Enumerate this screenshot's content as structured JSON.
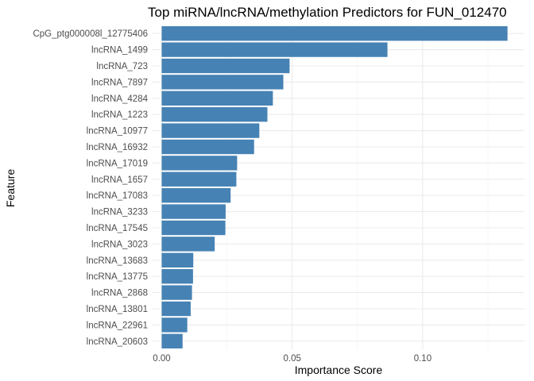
{
  "chart_data": {
    "type": "bar",
    "orientation": "horizontal",
    "title": "Top miRNA/lncRNA/methylation Predictors for FUN_012470",
    "xlabel": "Importance Score",
    "ylabel": "Feature",
    "xlim": [
      -0.0035,
      0.139
    ],
    "xticks": [
      0.0,
      0.05,
      0.1
    ],
    "xtick_labels": [
      "0.00",
      "0.05",
      "0.10"
    ],
    "grid": true,
    "bar_color": "#4682B4",
    "categories": [
      "CpG_ptg000008l_12775406",
      "lncRNA_1499",
      "lncRNA_723",
      "lncRNA_7897",
      "lncRNA_4284",
      "lncRNA_1223",
      "lncRNA_10977",
      "lncRNA_16932",
      "lncRNA_17019",
      "lncRNA_1657",
      "lncRNA_17083",
      "lncRNA_3233",
      "lncRNA_17545",
      "lncRNA_3023",
      "lncRNA_13683",
      "lncRNA_13775",
      "lncRNA_2868",
      "lncRNA_13801",
      "lncRNA_22961",
      "lncRNA_20603"
    ],
    "values": [
      0.1325,
      0.0865,
      0.049,
      0.0466,
      0.0426,
      0.0405,
      0.0374,
      0.0354,
      0.0289,
      0.0286,
      0.0264,
      0.0245,
      0.0244,
      0.0203,
      0.0121,
      0.012,
      0.0116,
      0.0111,
      0.0098,
      0.008
    ]
  }
}
